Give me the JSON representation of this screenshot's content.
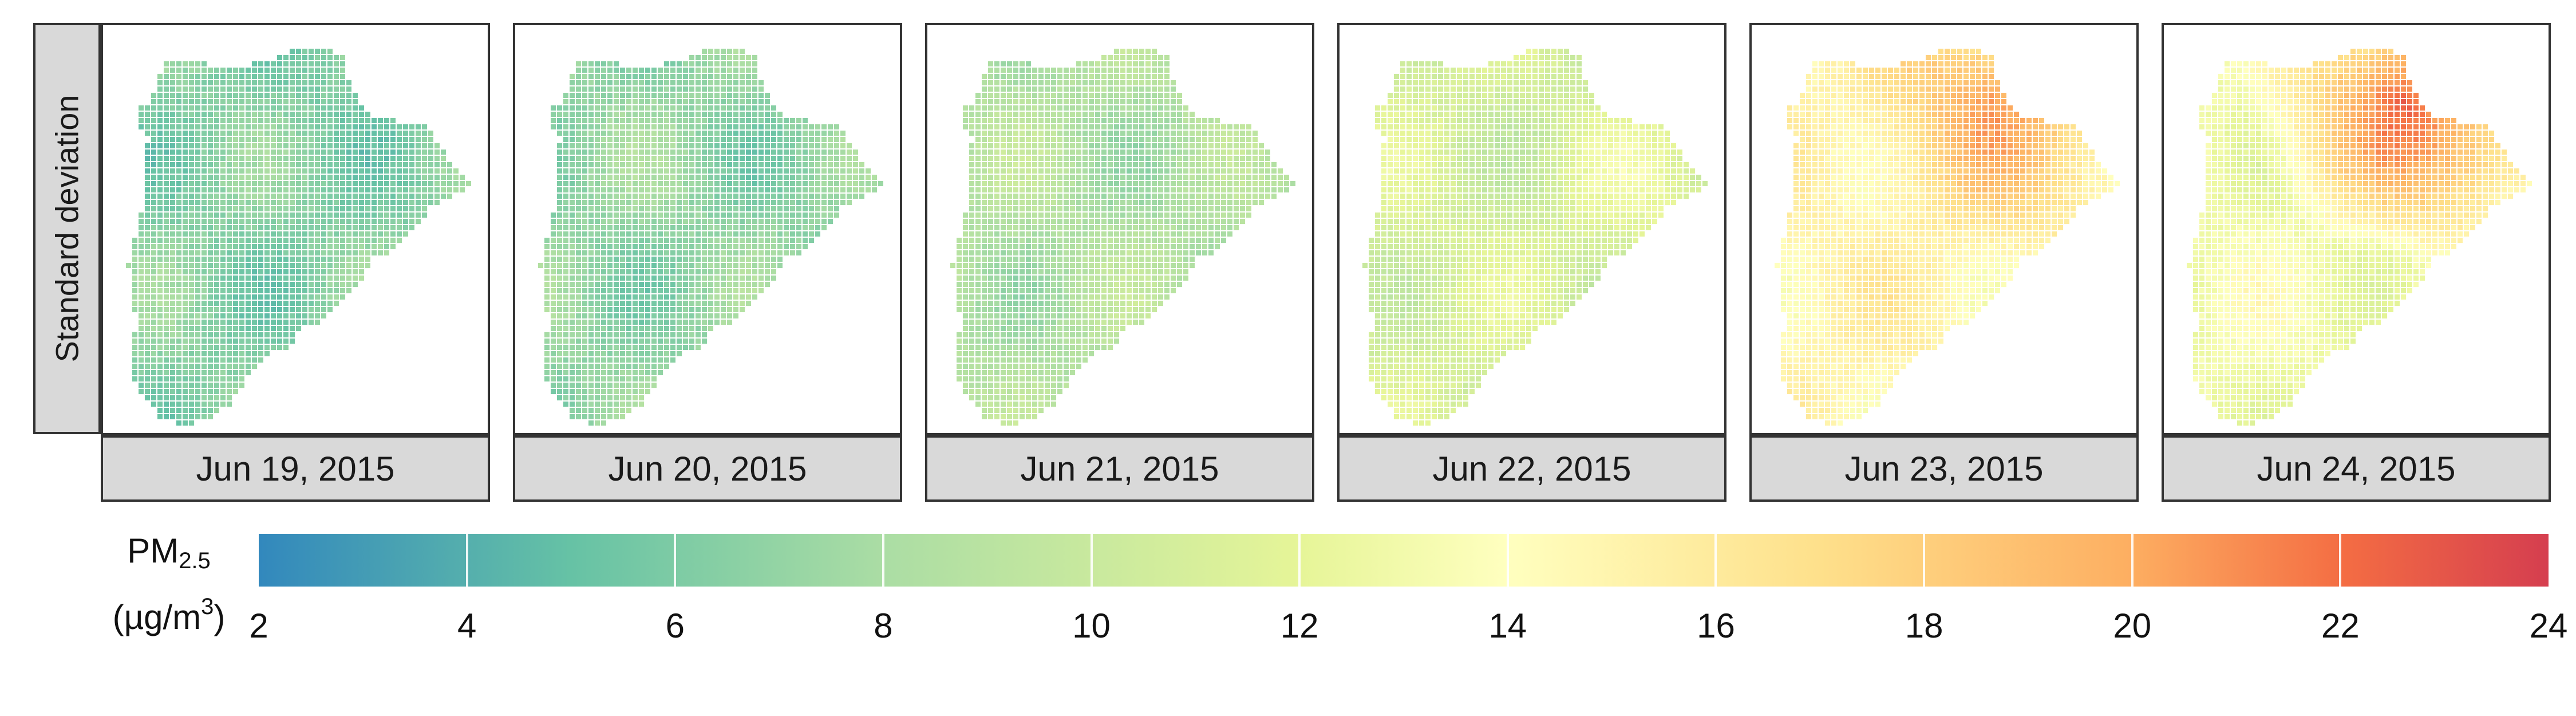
{
  "row_label": "Standard deviation",
  "panels": [
    {
      "date": "Jun 19, 2015",
      "mean_level": 6.5,
      "north_level": 6.0,
      "east_level": 7.0
    },
    {
      "date": "Jun 20, 2015",
      "mean_level": 7.0,
      "north_level": 7.0,
      "east_level": 6.5
    },
    {
      "date": "Jun 21, 2015",
      "mean_level": 8.5,
      "north_level": 8.5,
      "east_level": 8.0
    },
    {
      "date": "Jun 22, 2015",
      "mean_level": 11.0,
      "north_level": 10.5,
      "east_level": 13.0
    },
    {
      "date": "Jun 23, 2015",
      "mean_level": 15.0,
      "north_level": 20.0,
      "east_level": 16.0
    },
    {
      "date": "Jun 24, 2015",
      "mean_level": 13.0,
      "north_level": 22.0,
      "east_level": 17.0
    }
  ],
  "legend": {
    "title_main": "PM",
    "title_sub": "2.5",
    "unit_prefix": "(µg/m",
    "unit_sup": "3",
    "unit_suffix": ")",
    "min": 2,
    "max": 24,
    "ticks": [
      "2",
      "4",
      "6",
      "8",
      "10",
      "12",
      "14",
      "16",
      "18",
      "20",
      "22",
      "24"
    ],
    "palette": [
      "#3288bd",
      "#66c2a5",
      "#abdda4",
      "#e6f598",
      "#ffffbf",
      "#fee08b",
      "#fdae61",
      "#f46d43",
      "#d53e4f"
    ]
  }
}
